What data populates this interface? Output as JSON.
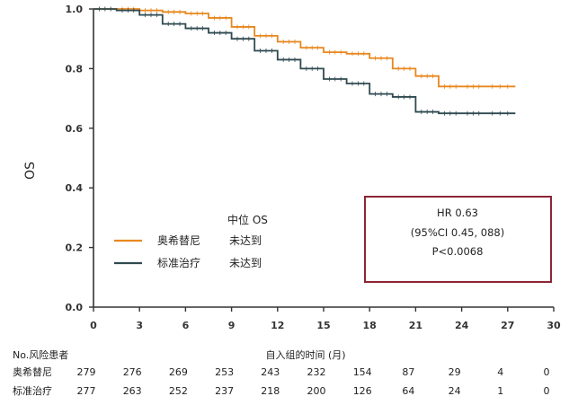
{
  "chart_data": {
    "type": "line",
    "subtype": "kaplan-meier",
    "ylabel": "OS",
    "xlabel": "自入组的时间 (月)",
    "xlim": [
      0,
      30
    ],
    "ylim": [
      0,
      1
    ],
    "xticks": [
      0,
      3,
      6,
      9,
      12,
      15,
      18,
      21,
      24,
      27,
      30
    ],
    "yticks": [
      "0.0",
      "0.2",
      "0.4",
      "0.6",
      "0.8",
      "1.0"
    ],
    "legend_title": "中位 OS",
    "series": [
      {
        "name": "奥希替尼",
        "median": "未达到",
        "color": "#e8871e",
        "x": [
          0,
          1.5,
          3,
          4.5,
          6,
          7.5,
          9,
          10.5,
          12,
          13.5,
          15,
          16.5,
          18,
          19.5,
          21,
          22.5,
          24,
          25.5,
          27.5
        ],
        "y": [
          1.0,
          1.0,
          0.995,
          0.99,
          0.985,
          0.97,
          0.94,
          0.91,
          0.89,
          0.87,
          0.855,
          0.85,
          0.835,
          0.8,
          0.775,
          0.74,
          0.74,
          0.74,
          0.74
        ]
      },
      {
        "name": "标准治疗",
        "median": "未达到",
        "color": "#2f4a50",
        "x": [
          0,
          1.5,
          3,
          4.5,
          6,
          7.5,
          9,
          10.5,
          12,
          13.5,
          15,
          16.5,
          18,
          19.5,
          21,
          22.5,
          24,
          25.5,
          27.5
        ],
        "y": [
          1.0,
          0.995,
          0.98,
          0.95,
          0.935,
          0.92,
          0.9,
          0.86,
          0.83,
          0.8,
          0.765,
          0.75,
          0.715,
          0.705,
          0.655,
          0.65,
          0.65,
          0.65,
          0.65
        ]
      }
    ],
    "annotation": {
      "line1": "HR 0.63",
      "line2": "(95%CI 0.45, 088)",
      "line3": "P<0.0068"
    },
    "risk_table": {
      "header": "No.风险患者",
      "rows": [
        {
          "label": "奥希替尼",
          "values": [
            "279",
            "276",
            "269",
            "253",
            "243",
            "232",
            "154",
            "87",
            "29",
            "4",
            "0"
          ]
        },
        {
          "label": "标准治疗",
          "values": [
            "277",
            "263",
            "252",
            "237",
            "218",
            "200",
            "126",
            "64",
            "24",
            "1",
            "0"
          ]
        }
      ]
    }
  }
}
